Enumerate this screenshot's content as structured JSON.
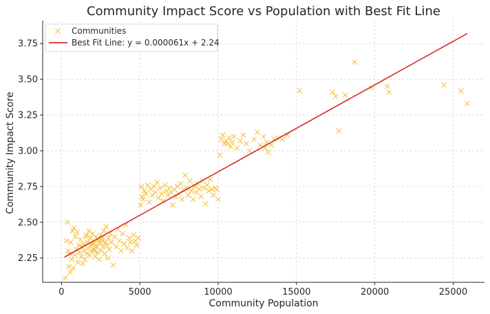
{
  "chart_data": {
    "type": "scatter",
    "title": "Community Impact Score vs Population with Best Fit Line",
    "xlabel": "Community Population",
    "ylabel": "Community Impact Score",
    "xlim": [
      -1200,
      27000
    ],
    "ylim": [
      2.08,
      3.91
    ],
    "x_ticks": [
      0,
      5000,
      10000,
      15000,
      20000,
      25000
    ],
    "y_ticks": [
      2.25,
      2.5,
      2.75,
      3.0,
      3.25,
      3.5,
      3.75
    ],
    "grid": true,
    "legend_position": "top-left",
    "series": [
      {
        "name": "Communities",
        "kind": "scatter",
        "marker": "x",
        "color": "#f6b92b",
        "points": [
          [
            250,
            2.11
          ],
          [
            320,
            2.37
          ],
          [
            380,
            2.5
          ],
          [
            420,
            2.3
          ],
          [
            460,
            2.19
          ],
          [
            500,
            2.28
          ],
          [
            560,
            2.15
          ],
          [
            600,
            2.36
          ],
          [
            650,
            2.24
          ],
          [
            700,
            2.44
          ],
          [
            750,
            2.18
          ],
          [
            800,
            2.46
          ],
          [
            860,
            2.27
          ],
          [
            900,
            2.4
          ],
          [
            950,
            2.31
          ],
          [
            1000,
            2.43
          ],
          [
            1050,
            2.22
          ],
          [
            1100,
            2.34
          ],
          [
            1150,
            2.29
          ],
          [
            1200,
            2.38
          ],
          [
            1250,
            2.26
          ],
          [
            1300,
            2.33
          ],
          [
            1350,
            2.21
          ],
          [
            1400,
            2.35
          ],
          [
            1450,
            2.3
          ],
          [
            1500,
            2.24
          ],
          [
            1550,
            2.4
          ],
          [
            1600,
            2.28
          ],
          [
            1650,
            2.36
          ],
          [
            1700,
            2.32
          ],
          [
            1750,
            2.44
          ],
          [
            1800,
            2.27
          ],
          [
            1850,
            2.39
          ],
          [
            1900,
            2.3
          ],
          [
            1950,
            2.34
          ],
          [
            2000,
            2.42
          ],
          [
            2050,
            2.31
          ],
          [
            2100,
            2.36
          ],
          [
            2150,
            2.26
          ],
          [
            2200,
            2.4
          ],
          [
            2250,
            2.33
          ],
          [
            2300,
            2.29
          ],
          [
            2350,
            2.38
          ],
          [
            2400,
            2.24
          ],
          [
            2450,
            2.35
          ],
          [
            2500,
            2.41
          ],
          [
            2550,
            2.3
          ],
          [
            2600,
            2.37
          ],
          [
            2650,
            2.33
          ],
          [
            2700,
            2.44
          ],
          [
            2750,
            2.28
          ],
          [
            2800,
            2.36
          ],
          [
            2850,
            2.47
          ],
          [
            2900,
            2.34
          ],
          [
            2950,
            2.25
          ],
          [
            3000,
            2.39
          ],
          [
            3050,
            2.31
          ],
          [
            3100,
            2.42
          ],
          [
            3200,
            2.36
          ],
          [
            3300,
            2.2
          ],
          [
            3400,
            2.4
          ],
          [
            3500,
            2.33
          ],
          [
            3600,
            2.45
          ],
          [
            3700,
            2.37
          ],
          [
            3800,
            2.3
          ],
          [
            3900,
            2.42
          ],
          [
            4000,
            2.35
          ],
          [
            4100,
            2.48
          ],
          [
            4200,
            2.32
          ],
          [
            4300,
            2.39
          ],
          [
            4400,
            2.36
          ],
          [
            4500,
            2.3
          ],
          [
            4600,
            2.41
          ],
          [
            4700,
            2.37
          ],
          [
            4800,
            2.34
          ],
          [
            4900,
            2.39
          ],
          [
            1900,
            2.35
          ],
          [
            2100,
            2.3
          ],
          [
            1600,
            2.41
          ],
          [
            2400,
            2.37
          ],
          [
            2200,
            2.33
          ],
          [
            2600,
            2.39
          ],
          [
            5050,
            2.62
          ],
          [
            5100,
            2.75
          ],
          [
            5150,
            2.68
          ],
          [
            5200,
            2.66
          ],
          [
            5300,
            2.72
          ],
          [
            5400,
            2.7
          ],
          [
            5500,
            2.76
          ],
          [
            5600,
            2.64
          ],
          [
            5700,
            2.73
          ],
          [
            5800,
            2.69
          ],
          [
            5900,
            2.75
          ],
          [
            6000,
            2.71
          ],
          [
            6100,
            2.78
          ],
          [
            6200,
            2.67
          ],
          [
            6300,
            2.74
          ],
          [
            6400,
            2.7
          ],
          [
            6500,
            2.65
          ],
          [
            6600,
            2.76
          ],
          [
            6700,
            2.72
          ],
          [
            6800,
            2.69
          ],
          [
            6900,
            2.74
          ],
          [
            7000,
            2.71
          ],
          [
            7100,
            2.62
          ],
          [
            7200,
            2.73
          ],
          [
            7300,
            2.68
          ],
          [
            7400,
            2.75
          ],
          [
            7500,
            2.7
          ],
          [
            7600,
            2.77
          ],
          [
            7700,
            2.66
          ],
          [
            7800,
            2.73
          ],
          [
            7900,
            2.83
          ],
          [
            8000,
            2.74
          ],
          [
            8100,
            2.69
          ],
          [
            8200,
            2.79
          ],
          [
            8300,
            2.72
          ],
          [
            8400,
            2.66
          ],
          [
            8500,
            2.75
          ],
          [
            8600,
            2.71
          ],
          [
            8700,
            2.77
          ],
          [
            8800,
            2.73
          ],
          [
            8900,
            2.68
          ],
          [
            9000,
            2.79
          ],
          [
            9100,
            2.74
          ],
          [
            9200,
            2.63
          ],
          [
            9300,
            2.76
          ],
          [
            9400,
            2.72
          ],
          [
            9500,
            2.8
          ],
          [
            9600,
            2.73
          ],
          [
            9700,
            2.69
          ],
          [
            9800,
            2.74
          ],
          [
            9900,
            2.73
          ],
          [
            10000,
            2.66
          ],
          [
            10100,
            2.97
          ],
          [
            10200,
            3.08
          ],
          [
            10300,
            3.11
          ],
          [
            10400,
            3.05
          ],
          [
            10500,
            3.07
          ],
          [
            10600,
            3.05
          ],
          [
            10700,
            3.09
          ],
          [
            10800,
            3.03
          ],
          [
            10900,
            3.06
          ],
          [
            11000,
            3.1
          ],
          [
            11200,
            3.02
          ],
          [
            11400,
            3.07
          ],
          [
            11600,
            3.11
          ],
          [
            11800,
            3.05
          ],
          [
            12000,
            3.0
          ],
          [
            12300,
            3.08
          ],
          [
            12500,
            3.13
          ],
          [
            12700,
            3.04
          ],
          [
            12900,
            3.1
          ],
          [
            13000,
            3.02
          ],
          [
            13100,
            3.06
          ],
          [
            13200,
            2.99
          ],
          [
            13400,
            3.04
          ],
          [
            13600,
            3.08
          ],
          [
            13800,
            3.09
          ],
          [
            14100,
            3.08
          ],
          [
            14400,
            3.11
          ],
          [
            15200,
            3.42
          ],
          [
            17300,
            3.41
          ],
          [
            17500,
            3.38
          ],
          [
            17700,
            3.14
          ],
          [
            18100,
            3.39
          ],
          [
            18700,
            3.62
          ],
          [
            19800,
            3.44
          ],
          [
            20800,
            3.45
          ],
          [
            20900,
            3.41
          ],
          [
            24400,
            3.46
          ],
          [
            25500,
            3.42
          ],
          [
            25900,
            3.33
          ]
        ]
      },
      {
        "name": "Best Fit Line: y = 0.000061x + 2.24",
        "kind": "line",
        "color": "#d62728",
        "points": [
          [
            200,
            2.257
          ],
          [
            25900,
            3.82
          ]
        ]
      }
    ]
  }
}
